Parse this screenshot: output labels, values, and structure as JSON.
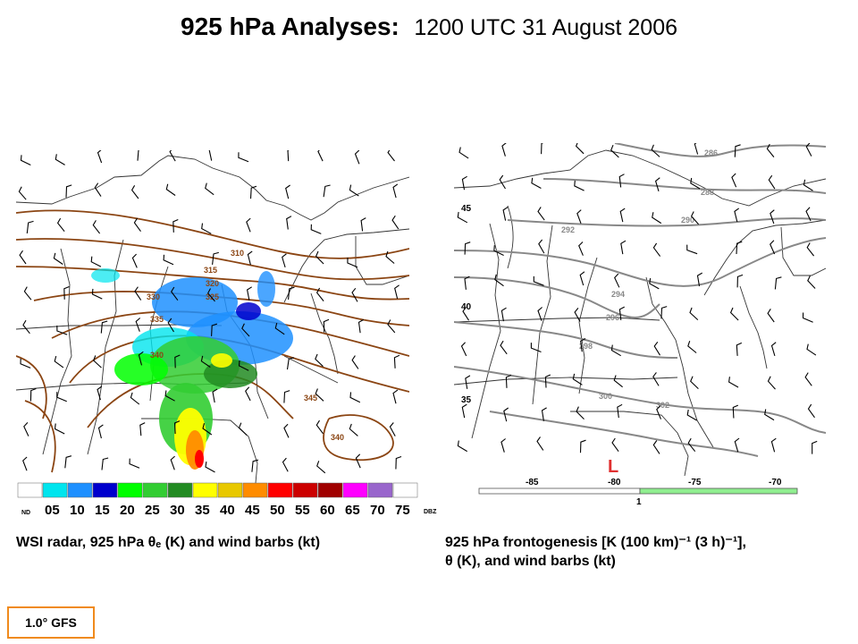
{
  "title": {
    "main": "925 hPa Analyses:",
    "sub": "1200 UTC 31 August 2006"
  },
  "left_panel": {
    "caption": "WSI radar, 925 hPa θₑ (K) and wind barbs (kt)",
    "contour_labels": [
      "310",
      "315",
      "320",
      "325",
      "330",
      "335",
      "340",
      "345",
      "340"
    ],
    "contour_color": "#8b4513",
    "colorbar": {
      "colors": [
        "#ffffff",
        "#00e5ee",
        "#1e90ff",
        "#0000cd",
        "#00ff00",
        "#32cd32",
        "#228b22",
        "#ffff00",
        "#e8c800",
        "#ff8c00",
        "#ff0000",
        "#cc0000",
        "#a00000",
        "#ff00ff",
        "#9966cc",
        "#ffffff"
      ],
      "labels": [
        "ND",
        "05",
        "10",
        "15",
        "20",
        "25",
        "30",
        "35",
        "40",
        "45",
        "50",
        "55",
        "60",
        "65",
        "70",
        "75"
      ],
      "unit": "DBZ"
    }
  },
  "right_panel": {
    "caption_line1": "925 hPa frontogenesis [K (100 km)⁻¹ (3 h)⁻¹],",
    "caption_line2": "θ (K), and wind barbs (kt)",
    "contour_labels": [
      "286",
      "288",
      "290",
      "292",
      "294",
      "296",
      "298",
      "300",
      "302"
    ],
    "lat_labels": [
      "45",
      "40",
      "35"
    ],
    "lon_labels": [
      "-85",
      "-80",
      "-75",
      "-70"
    ],
    "low_label": "L",
    "scale_label": "1",
    "contour_color": "#888888",
    "scale_color": "#90ee90"
  },
  "badge": {
    "label": "1.0° GFS",
    "color": "#f08a1c"
  }
}
